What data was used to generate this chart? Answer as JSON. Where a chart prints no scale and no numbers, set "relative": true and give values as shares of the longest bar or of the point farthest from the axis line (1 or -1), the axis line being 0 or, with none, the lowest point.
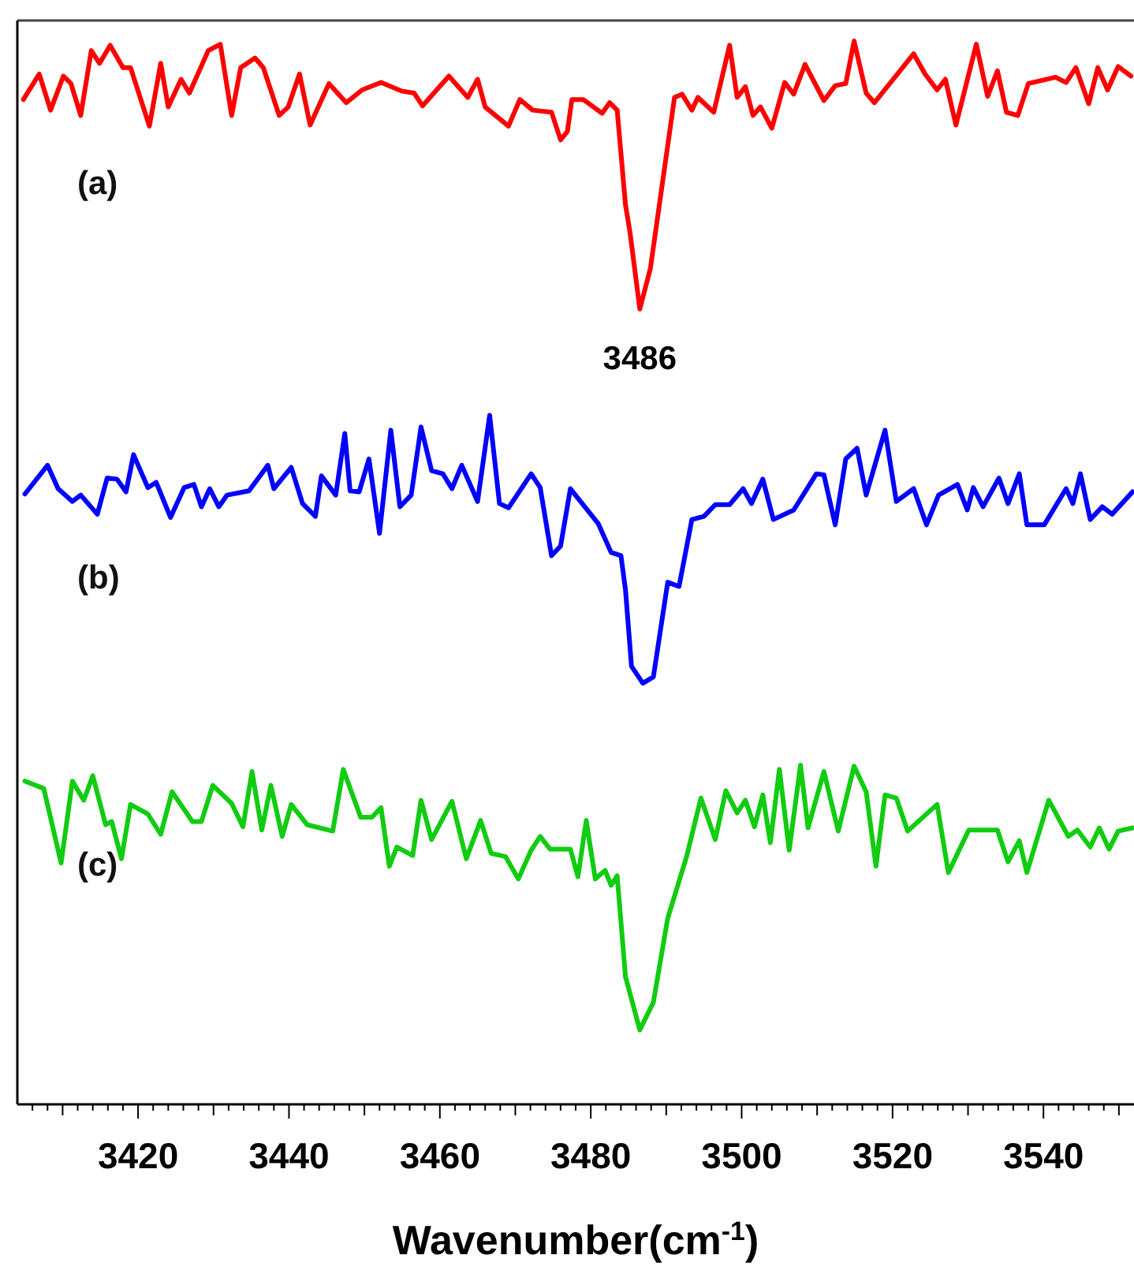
{
  "chart_data": {
    "type": "line",
    "relative": true,
    "xlabel": "Wavenumber(cm$^{-1}$)",
    "xlim": [
      3404,
      3552
    ],
    "xticks": [
      {
        "value": 3406,
        "label": null
      },
      {
        "value": 3408,
        "label": null
      },
      {
        "value": 3410,
        "label": null
      },
      {
        "value": 3412,
        "label": null
      },
      {
        "value": 3414,
        "label": null
      },
      {
        "value": 3416,
        "label": null
      },
      {
        "value": 3418,
        "label": null
      },
      3420,
      {
        "value": 3422,
        "label": null
      },
      {
        "value": 3424,
        "label": null
      },
      {
        "value": 3426,
        "label": null
      },
      {
        "value": 3428,
        "label": null
      },
      {
        "value": 3430,
        "label": null
      },
      {
        "value": 3432,
        "label": null
      },
      {
        "value": 3434,
        "label": null
      },
      {
        "value": 3436,
        "label": null
      },
      {
        "value": 3438,
        "label": null
      },
      3440,
      {
        "value": 3442,
        "label": null
      },
      {
        "value": 3444,
        "label": null
      },
      {
        "value": 3446,
        "label": null
      },
      {
        "value": 3448,
        "label": null
      },
      {
        "value": 3450,
        "label": null
      },
      {
        "value": 3452,
        "label": null
      },
      {
        "value": 3454,
        "label": null
      },
      {
        "value": 3456,
        "label": null
      },
      {
        "value": 3458,
        "label": null
      },
      3460,
      {
        "value": 3462,
        "label": null
      },
      {
        "value": 3464,
        "label": null
      },
      {
        "value": 3466,
        "label": null
      },
      {
        "value": 3468,
        "label": null
      },
      {
        "value": 3470,
        "label": null
      },
      {
        "value": 3472,
        "label": null
      },
      {
        "value": 3474,
        "label": null
      },
      {
        "value": 3476,
        "label": null
      },
      {
        "value": 3478,
        "label": null
      },
      3480,
      {
        "value": 3482,
        "label": null
      },
      {
        "value": 3484,
        "label": null
      },
      {
        "value": 3486,
        "label": null
      },
      {
        "value": 3488,
        "label": null
      },
      {
        "value": 3490,
        "label": null
      },
      {
        "value": 3492,
        "label": null
      },
      {
        "value": 3494,
        "label": null
      },
      {
        "value": 3496,
        "label": null
      },
      {
        "value": 3498,
        "label": null
      },
      3500,
      {
        "value": 3502,
        "label": null
      },
      {
        "value": 3504,
        "label": null
      },
      {
        "value": 3506,
        "label": null
      },
      {
        "value": 3508,
        "label": null
      },
      {
        "value": 3510,
        "label": null
      },
      {
        "value": 3512,
        "label": null
      },
      {
        "value": 3514,
        "label": null
      },
      {
        "value": 3516,
        "label": null
      },
      {
        "value": 3518,
        "label": null
      },
      3520,
      {
        "value": 3522,
        "label": null
      },
      {
        "value": 3524,
        "label": null
      },
      {
        "value": 3526,
        "label": null
      },
      {
        "value": 3528,
        "label": null
      },
      {
        "value": 3530,
        "label": null
      },
      {
        "value": 3532,
        "label": null
      },
      {
        "value": 3534,
        "label": null
      },
      {
        "value": 3536,
        "label": null
      },
      {
        "value": 3538,
        "label": null
      },
      3540,
      {
        "value": 3542,
        "label": null
      },
      {
        "value": 3544,
        "label": null
      },
      {
        "value": 3546,
        "label": null
      },
      {
        "value": 3548,
        "label": null
      },
      {
        "value": 3550,
        "label": null
      }
    ],
    "marker": "none",
    "line_style": "solid",
    "legend": false,
    "grid": false,
    "annotations": [
      {
        "text": "3486",
        "x": 3486.5,
        "y": 0.748
      }
    ],
    "series": [
      {
        "name": "(a)",
        "color": "#ff0000",
        "x": [
          3404.8,
          3406.9,
          3408.4,
          3410.1,
          3411.1,
          3412.4,
          3413.8,
          3414.9,
          3416.3,
          3418.0,
          3419.0,
          3421.5,
          3423.0,
          3424.0,
          3425.7,
          3426.8,
          3429.3,
          3430.9,
          3432.4,
          3433.6,
          3435.5,
          3436.6,
          3438.7,
          3439.9,
          3441.4,
          3442.8,
          3445.3,
          3447.6,
          3449.7,
          3452.2,
          3454.9,
          3456.6,
          3457.7,
          3461.2,
          3463.7,
          3465.0,
          3466.0,
          3469.1,
          3470.6,
          3472.3,
          3474.8,
          3476.0,
          3476.9,
          3477.5,
          3479.0,
          3481.5,
          3482.5,
          3483.5,
          3484.6,
          3485.2,
          3486.5,
          3487.9,
          3491.1,
          3492.1,
          3493.4,
          3494.2,
          3496.3,
          3498.4,
          3499.4,
          3500.5,
          3501.5,
          3502.5,
          3504.0,
          3505.7,
          3506.9,
          3508.4,
          3510.9,
          3512.4,
          3513.8,
          3514.9,
          3516.5,
          3517.6,
          3522.8,
          3524.3,
          3525.9,
          3527.0,
          3528.4,
          3531.1,
          3532.6,
          3533.9,
          3535.1,
          3536.6,
          3538.0,
          3541.6,
          3543.0,
          3544.3,
          3546.0,
          3547.2,
          3548.5,
          3549.9,
          3551.6
        ],
        "values": [
          0.945,
          0.969,
          0.935,
          0.967,
          0.96,
          0.93,
          0.991,
          0.979,
          0.996,
          0.975,
          0.975,
          0.92,
          0.979,
          0.938,
          0.964,
          0.951,
          0.991,
          0.997,
          0.93,
          0.975,
          0.984,
          0.975,
          0.93,
          0.938,
          0.969,
          0.921,
          0.96,
          0.942,
          0.954,
          0.961,
          0.953,
          0.951,
          0.939,
          0.967,
          0.947,
          0.964,
          0.938,
          0.92,
          0.945,
          0.935,
          0.933,
          0.907,
          0.915,
          0.945,
          0.945,
          0.932,
          0.942,
          0.935,
          0.846,
          0.82,
          0.748,
          0.786,
          0.947,
          0.95,
          0.935,
          0.947,
          0.933,
          0.996,
          0.947,
          0.957,
          0.93,
          0.938,
          0.918,
          0.961,
          0.95,
          0.978,
          0.944,
          0.958,
          0.96,
          1,
          0.951,
          0.942,
          0.988,
          0.969,
          0.954,
          0.964,
          0.921,
          0.997,
          0.948,
          0.972,
          0.933,
          0.93,
          0.96,
          0.966,
          0.961,
          0.975,
          0.941,
          0.975,
          0.954,
          0.976,
          0.967
        ]
      },
      {
        "name": "(b)",
        "color": "#0000ff",
        "x": [
          3405.0,
          3408.0,
          3409.4,
          3411.3,
          3412.4,
          3414.6,
          3415.9,
          3417.2,
          3418.4,
          3419.4,
          3421.3,
          3422.4,
          3424.3,
          3426.1,
          3427.4,
          3428.4,
          3429.5,
          3430.7,
          3431.8,
          3434.7,
          3437.2,
          3438.0,
          3440.3,
          3441.8,
          3443.5,
          3444.3,
          3446.2,
          3447.4,
          3448.1,
          3449.3,
          3450.6,
          3452.0,
          3453.5,
          3454.7,
          3456.2,
          3457.5,
          3458.9,
          3460.4,
          3461.6,
          3462.9,
          3465.0,
          3466.6,
          3467.9,
          3469.1,
          3472.1,
          3473.3,
          3474.8,
          3476.0,
          3477.3,
          3481.0,
          3482.7,
          3484.0,
          3484.6,
          3485.4,
          3486.9,
          3488.3,
          3490.2,
          3491.7,
          3493.4,
          3495.0,
          3496.5,
          3498.4,
          3500.2,
          3501.3,
          3502.8,
          3504.2,
          3506.9,
          3509.9,
          3510.9,
          3512.4,
          3513.8,
          3515.3,
          3516.5,
          3519.0,
          3520.5,
          3522.8,
          3524.5,
          3526.1,
          3528.6,
          3529.9,
          3530.7,
          3532.0,
          3534.1,
          3535.3,
          3536.8,
          3537.8,
          3540.1,
          3543.0,
          3543.9,
          3544.9,
          3546.2,
          3547.8,
          3549.1,
          3551.8
        ],
        "values": [
          0.574,
          0.601,
          0.579,
          0.567,
          0.573,
          0.555,
          0.589,
          0.588,
          0.576,
          0.611,
          0.58,
          0.585,
          0.552,
          0.58,
          0.583,
          0.562,
          0.579,
          0.562,
          0.573,
          0.577,
          0.601,
          0.579,
          0.599,
          0.565,
          0.553,
          0.591,
          0.573,
          0.631,
          0.577,
          0.576,
          0.607,
          0.537,
          0.634,
          0.562,
          0.573,
          0.637,
          0.596,
          0.593,
          0.579,
          0.601,
          0.567,
          0.648,
          0.565,
          0.561,
          0.593,
          0.58,
          0.516,
          0.525,
          0.579,
          0.546,
          0.519,
          0.516,
          0.484,
          0.412,
          0.396,
          0.402,
          0.491,
          0.487,
          0.55,
          0.553,
          0.564,
          0.564,
          0.579,
          0.565,
          0.588,
          0.55,
          0.559,
          0.593,
          0.592,
          0.545,
          0.607,
          0.617,
          0.573,
          0.634,
          0.567,
          0.579,
          0.545,
          0.573,
          0.583,
          0.559,
          0.58,
          0.562,
          0.589,
          0.565,
          0.593,
          0.545,
          0.545,
          0.579,
          0.565,
          0.593,
          0.55,
          0.562,
          0.555,
          0.576
        ]
      },
      {
        "name": "(c)",
        "color": "#11cc11",
        "x": [
          3405.0,
          3407.5,
          3409.8,
          3411.3,
          3412.8,
          3414.0,
          3415.7,
          3416.5,
          3417.8,
          3419.0,
          3421.3,
          3423.0,
          3424.5,
          3427.2,
          3428.4,
          3429.9,
          3432.4,
          3433.9,
          3435.1,
          3436.4,
          3437.6,
          3439.1,
          3440.3,
          3442.4,
          3445.8,
          3447.2,
          3449.5,
          3451.0,
          3452.2,
          3453.3,
          3454.3,
          3456.4,
          3457.5,
          3458.9,
          3461.6,
          3463.5,
          3465.4,
          3466.8,
          3468.7,
          3470.4,
          3472.1,
          3473.3,
          3474.6,
          3477.3,
          3478.3,
          3479.4,
          3480.6,
          3481.9,
          3482.7,
          3483.5,
          3484.6,
          3486.5,
          3488.3,
          3490.2,
          3492.7,
          3494.6,
          3496.5,
          3497.9,
          3499.4,
          3500.5,
          3501.7,
          3502.8,
          3503.8,
          3505.0,
          3506.3,
          3507.8,
          3508.8,
          3510.9,
          3512.8,
          3514.9,
          3516.5,
          3517.8,
          3519.0,
          3520.5,
          3522.0,
          3525.9,
          3527.4,
          3530.1,
          3533.9,
          3535.3,
          3536.8,
          3537.8,
          3540.7,
          3543.3,
          3544.5,
          3546.2,
          3547.4,
          3548.7,
          3549.9,
          3551.8
        ],
        "values": [
          0.304,
          0.297,
          0.227,
          0.304,
          0.286,
          0.309,
          0.263,
          0.266,
          0.231,
          0.282,
          0.273,
          0.254,
          0.294,
          0.266,
          0.266,
          0.3,
          0.283,
          0.261,
          0.313,
          0.258,
          0.3,
          0.252,
          0.282,
          0.263,
          0.257,
          0.315,
          0.27,
          0.27,
          0.279,
          0.224,
          0.242,
          0.234,
          0.286,
          0.249,
          0.285,
          0.231,
          0.267,
          0.236,
          0.233,
          0.212,
          0.239,
          0.252,
          0.24,
          0.24,
          0.214,
          0.267,
          0.212,
          0.22,
          0.206,
          0.215,
          0.12,
          0.07,
          0.096,
          0.175,
          0.233,
          0.288,
          0.249,
          0.295,
          0.274,
          0.286,
          0.261,
          0.291,
          0.246,
          0.315,
          0.239,
          0.319,
          0.26,
          0.313,
          0.257,
          0.318,
          0.294,
          0.224,
          0.291,
          0.288,
          0.257,
          0.282,
          0.218,
          0.258,
          0.258,
          0.228,
          0.248,
          0.218,
          0.286,
          0.252,
          0.258,
          0.242,
          0.26,
          0.24,
          0.257,
          0.26
        ]
      }
    ]
  }
}
